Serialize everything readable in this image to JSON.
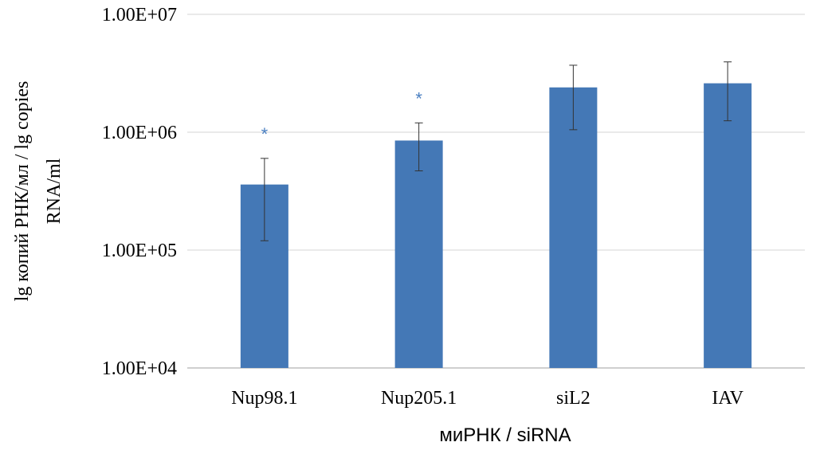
{
  "chart_data": {
    "type": "bar",
    "title": "",
    "xlabel": "миРНК / siRNA",
    "ylabel_lines": [
      "lg копий РНК/мл / lg copies",
      "RNA/ml"
    ],
    "y_scale": "log10",
    "ylim": [
      10000,
      10000000
    ],
    "yticks": [
      {
        "value": 10000,
        "label": "1.00E+04"
      },
      {
        "value": 100000,
        "label": "1.00E+05"
      },
      {
        "value": 1000000,
        "label": "1.00E+06"
      },
      {
        "value": 10000000,
        "label": "1.00E+07"
      }
    ],
    "grid": true,
    "categories": [
      "Nup98.1",
      "Nup205.1",
      "siL2",
      "IAV"
    ],
    "values": [
      360000,
      850000,
      2400000,
      2600000
    ],
    "error_low": [
      120000,
      470000,
      1050000,
      1250000
    ],
    "error_high": [
      600000,
      1200000,
      3700000,
      3950000
    ],
    "significance": [
      "*",
      "*",
      "",
      ""
    ],
    "bar_color": "#4478b6",
    "marker_color": "#4a7fc1",
    "grid_color": "#d4d4d4",
    "axis_color": "#bfbfbf",
    "error_color": "#333333"
  }
}
